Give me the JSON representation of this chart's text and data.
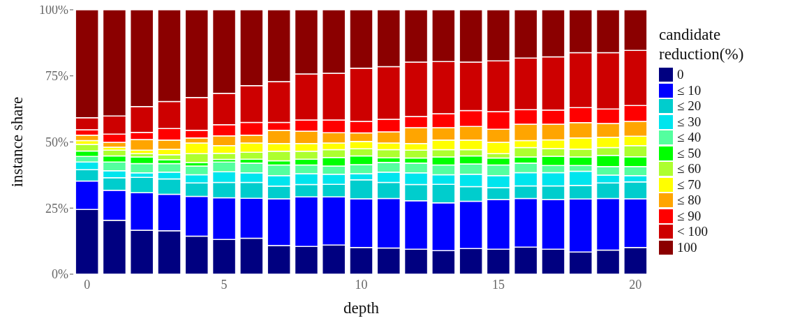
{
  "chart_data": {
    "type": "bar",
    "stacked": true,
    "xlabel": "depth",
    "ylabel": "instance share",
    "legend_title": "candidate reduction(%)",
    "legend": "right",
    "grid": false,
    "categories": [
      "0",
      null,
      null,
      null,
      null,
      "5",
      null,
      null,
      null,
      null,
      "10",
      null,
      null,
      null,
      null,
      "15",
      null,
      null,
      null,
      null,
      "20"
    ],
    "ylim": [
      0,
      100
    ],
    "yticks": [
      {
        "value": 0,
        "label": "0%"
      },
      {
        "value": 25,
        "label": "25%"
      },
      {
        "value": 50,
        "label": "50%"
      },
      {
        "value": 75,
        "label": "75%"
      },
      {
        "value": 100,
        "label": "100%"
      }
    ],
    "series": [
      {
        "name": "0",
        "color": "#000080",
        "values": [
          24.5,
          20.4,
          16.6,
          16.4,
          14.4,
          13.1,
          13.6,
          10.8,
          10.5,
          11.0,
          10.1,
          9.9,
          9.4,
          8.9,
          9.7,
          9.4,
          10.2,
          9.4,
          8.4,
          9.1,
          10.1
        ]
      },
      {
        "name": "≤ 10",
        "color": "#0000ff",
        "values": [
          10.7,
          11.3,
          14.2,
          13.8,
          15.0,
          15.8,
          15.1,
          17.7,
          18.7,
          18.2,
          18.4,
          18.7,
          18.4,
          18.1,
          17.9,
          18.8,
          18.4,
          18.8,
          20.0,
          19.5,
          18.4
        ]
      },
      {
        "name": "≤ 20",
        "color": "#00cdcd",
        "values": [
          4.3,
          4.8,
          5.8,
          5.8,
          5.1,
          5.8,
          6.0,
          4.8,
          4.7,
          4.8,
          7.2,
          6.1,
          6.1,
          7.0,
          5.5,
          4.5,
          4.8,
          5.2,
          5.2,
          5.9,
          6.4
        ]
      },
      {
        "name": "≤ 30",
        "color": "#00e5ee",
        "values": [
          2.9,
          2.6,
          1.7,
          2.6,
          3.1,
          4.0,
          3.6,
          4.0,
          4.1,
          3.8,
          2.3,
          3.9,
          4.4,
          3.6,
          4.7,
          4.6,
          5.0,
          5.0,
          5.3,
          3.0,
          2.4
        ]
      },
      {
        "name": "≤ 40",
        "color": "#54ff9f",
        "values": [
          2.1,
          3.3,
          3.5,
          3.2,
          3.3,
          3.7,
          3.7,
          4.0,
          3.3,
          3.1,
          3.4,
          3.7,
          3.7,
          3.7,
          3.9,
          4.0,
          3.6,
          2.7,
          2.2,
          3.2,
          3.4
        ]
      },
      {
        "name": "≤ 50",
        "color": "#00ff00",
        "values": [
          2.1,
          2.3,
          2.5,
          1.5,
          1.3,
          1.0,
          1.5,
          1.6,
          2.2,
          3.2,
          3.3,
          1.7,
          1.9,
          3.0,
          3.0,
          2.6,
          2.3,
          3.5,
          3.2,
          4.2,
          3.7
        ]
      },
      {
        "name": "≤ 60",
        "color": "#adff2f",
        "values": [
          2.5,
          2.2,
          1.3,
          1.9,
          3.4,
          2.3,
          2.6,
          3.6,
          3.0,
          3.0,
          2.7,
          3.1,
          3.0,
          2.8,
          2.4,
          1.7,
          3.6,
          2.9,
          3.0,
          3.0,
          4.2
        ]
      },
      {
        "name": "≤ 70",
        "color": "#ffff00",
        "values": [
          1.4,
          1.1,
          1.3,
          2.0,
          4.0,
          2.9,
          3.5,
          2.9,
          2.9,
          2.5,
          2.8,
          2.5,
          2.5,
          3.6,
          3.6,
          4.3,
          2.6,
          3.3,
          4.2,
          3.9,
          3.6
        ]
      },
      {
        "name": "≤ 80",
        "color": "#ffa500",
        "values": [
          2.1,
          1.9,
          4.0,
          3.5,
          1.9,
          3.7,
          3.0,
          5.0,
          4.7,
          3.9,
          3.2,
          4.2,
          6.0,
          4.7,
          5.2,
          4.9,
          6.2,
          5.9,
          5.8,
          5.2,
          5.6
        ]
      },
      {
        "name": "≤ 90",
        "color": "#ff0000",
        "values": [
          2.0,
          3.1,
          2.7,
          4.4,
          2.9,
          4.2,
          4.8,
          3.0,
          4.2,
          4.8,
          4.4,
          4.8,
          4.2,
          5.3,
          6.0,
          6.7,
          5.5,
          5.4,
          5.7,
          5.5,
          6.0
        ]
      },
      {
        "name": "< 100",
        "color": "#cd0000",
        "values": [
          4.6,
          6.8,
          9.8,
          10.2,
          12.4,
          11.9,
          13.9,
          15.4,
          17.4,
          17.7,
          20.1,
          19.9,
          20.6,
          19.7,
          18.3,
          19.2,
          19.5,
          20.1,
          20.8,
          21.3,
          20.8
        ]
      },
      {
        "name": "100",
        "color": "#8b0000",
        "values": [
          40.8,
          40.2,
          36.6,
          34.7,
          33.2,
          31.6,
          28.7,
          27.2,
          24.3,
          24.0,
          22.1,
          21.5,
          19.8,
          19.6,
          19.8,
          19.3,
          18.3,
          17.8,
          16.2,
          16.2,
          15.4
        ]
      }
    ]
  }
}
